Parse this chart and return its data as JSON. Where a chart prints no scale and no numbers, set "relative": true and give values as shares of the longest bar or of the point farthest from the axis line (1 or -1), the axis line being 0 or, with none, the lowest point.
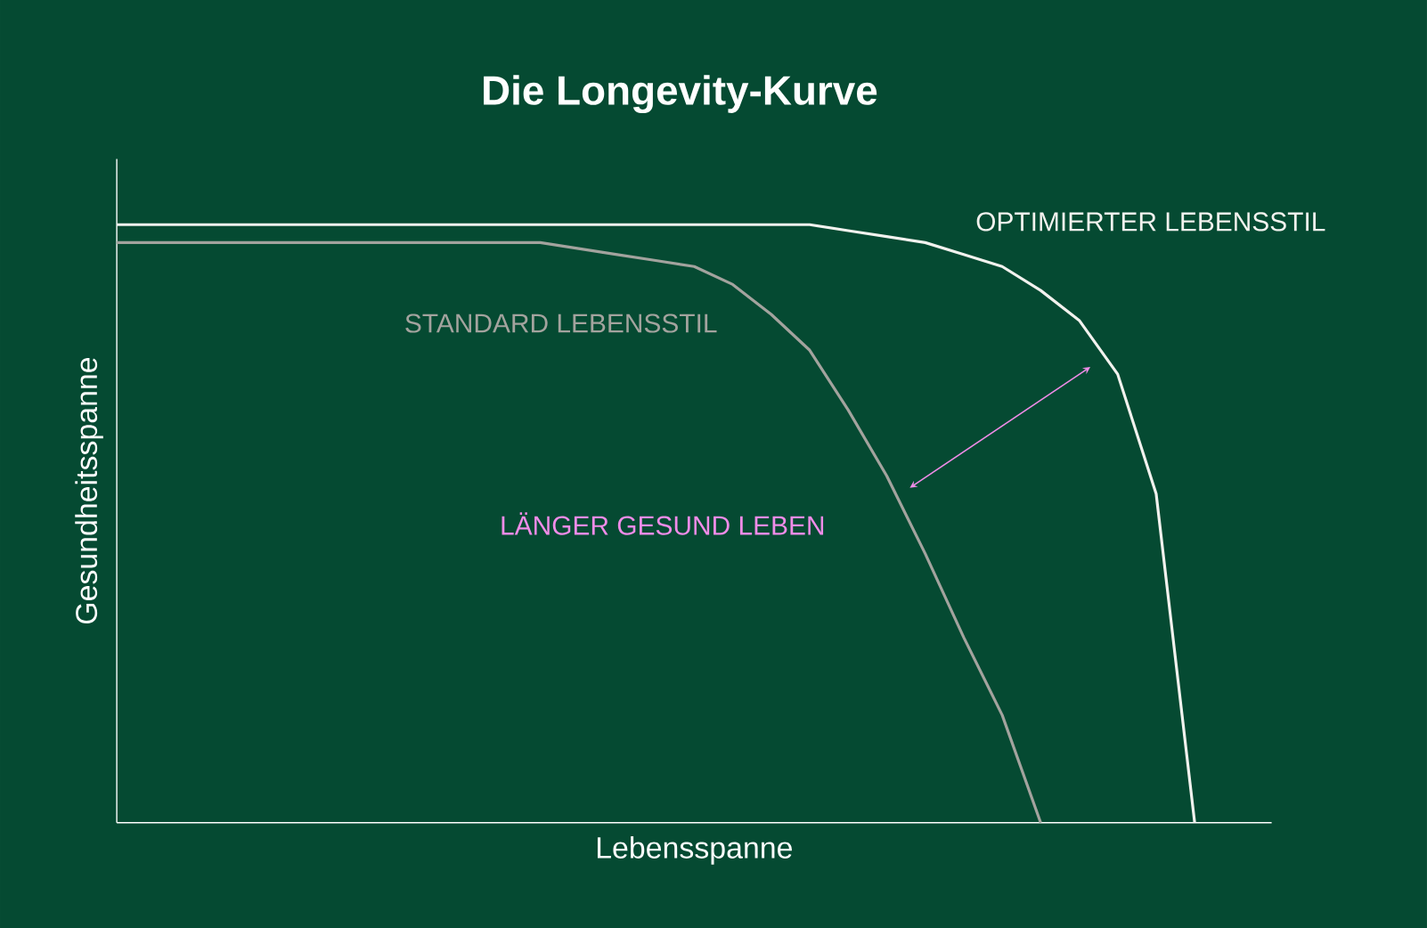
{
  "chart_data": {
    "type": "line",
    "title": "Die Longevity-Kurve",
    "xlabel": "Lebensspanne",
    "ylabel": "Gesundheitsspanne",
    "relative": true,
    "marker": "none",
    "categories": [
      null,
      null,
      null,
      null,
      null,
      null,
      null,
      null,
      null,
      null,
      null,
      null,
      null,
      null,
      null,
      null,
      null,
      null,
      null,
      null,
      null,
      null,
      null,
      null,
      null,
      null,
      null,
      null,
      null,
      null,
      null
    ],
    "series": [
      {
        "name": "OPTIMIERTER LEBENSSTIL",
        "color": "#f2f2ee",
        "values": [
          1,
          1,
          1,
          1,
          1,
          1,
          1,
          1,
          1,
          1,
          1,
          1,
          1,
          1,
          1,
          1,
          1,
          1,
          1,
          0.99,
          0.98,
          0.97,
          0.95,
          0.93,
          0.89,
          0.84,
          0.75,
          0.55,
          0,
          null,
          null
        ]
      },
      {
        "name": "STANDARD LEBENSSTIL",
        "color": "#a3a39e",
        "values": [
          0.97,
          0.97,
          0.97,
          0.97,
          0.97,
          0.97,
          0.97,
          0.97,
          0.97,
          0.97,
          0.97,
          0.97,
          0.96,
          0.95,
          0.94,
          0.93,
          0.9,
          0.85,
          0.79,
          0.69,
          0.58,
          0.45,
          0.31,
          0.18,
          0,
          null,
          null,
          null,
          null,
          null,
          null
        ]
      }
    ],
    "annotations": [
      "LÄNGER GESUND LEBEN"
    ]
  }
}
